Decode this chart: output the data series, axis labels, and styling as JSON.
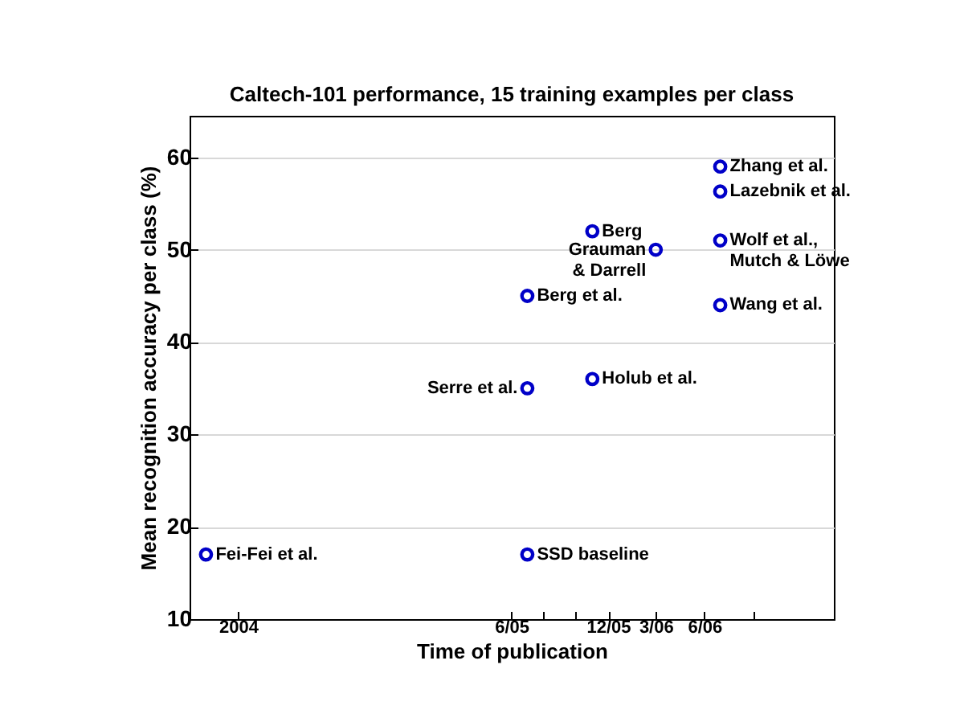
{
  "chart_data": {
    "type": "scatter",
    "title": "Caltech-101 performance, 15 training examples per class",
    "xlabel": "Time of publication",
    "ylabel": "Mean recognition accuracy per class (%)",
    "x": [
      "2003-11",
      "2005-07",
      "2005-07",
      "2005-07",
      "2005-11",
      "2005-11",
      "2006-03",
      "2006-07",
      "2006-07",
      "2006-07",
      "2006-07"
    ],
    "series": [
      {
        "color": "#0000c8",
        "values": [
          17,
          17,
          35,
          45,
          36,
          52,
          50,
          44,
          51,
          56.3,
          59
        ]
      }
    ],
    "xlim": [
      "2003-10",
      "2007-02"
    ],
    "xticks": [
      {
        "value": "2004-01",
        "label": "2004"
      },
      {
        "value": "2005-06",
        "label": "6/05"
      },
      {
        "value": "2005-08",
        "label": null
      },
      {
        "value": "2005-10",
        "label": null
      },
      {
        "value": "2005-12",
        "label": "12/05"
      },
      {
        "value": "2006-03",
        "label": "3/06"
      },
      {
        "value": "2006-06",
        "label": "6/06"
      },
      {
        "value": "2006-09",
        "label": null
      }
    ],
    "ylim": [
      10,
      64.5
    ],
    "yticks": [
      10,
      20,
      30,
      40,
      50,
      60
    ],
    "grid": "y",
    "marker": "circle",
    "annotations": [
      {
        "text": "Fei-Fei et al.",
        "x": "2003-11",
        "y": 17
      },
      {
        "text": "SSD baseline",
        "x": "2005-07",
        "y": 17
      },
      {
        "text": "Serre et al.",
        "x": "2005-07",
        "y": 35
      },
      {
        "text": "Berg et al.",
        "x": "2005-07",
        "y": 45
      },
      {
        "text": "Holub et al.",
        "x": "2005-11",
        "y": 36
      },
      {
        "text": "Berg",
        "x": "2005-11",
        "y": 52
      },
      {
        "text": "Grauman\n& Darrell",
        "x": "2006-03",
        "y": 50
      },
      {
        "text": "Wang et al.",
        "x": "2006-07",
        "y": 44
      },
      {
        "text": "Wolf et al.,\nMutch & Löwe",
        "x": "2006-07",
        "y": 51
      },
      {
        "text": "Lazebnik et al.",
        "x": "2006-07",
        "y": 56.3
      },
      {
        "text": "Zhang et al.",
        "x": "2006-07",
        "y": 59
      }
    ]
  }
}
